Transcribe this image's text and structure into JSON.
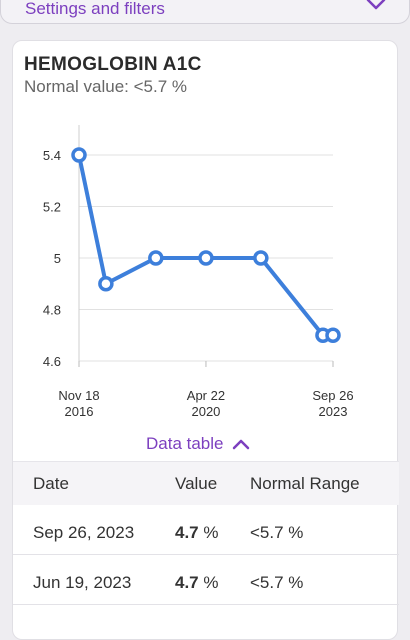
{
  "settings_bar": {
    "label": "Settings and filters",
    "icon": "chevron-down-icon"
  },
  "card": {
    "title": "HEMOGLOBIN A1C",
    "subtitle": "Normal value: <5.7 %"
  },
  "chart_data": {
    "type": "line",
    "x": [
      "2016-11-18",
      "2017-08-10",
      "2018-12-15",
      "2020-04-22",
      "2021-10-15",
      "2023-06-19",
      "2023-09-26"
    ],
    "series": [
      {
        "values": [
          5.4,
          4.9,
          5.0,
          5.0,
          5.0,
          4.7,
          4.7
        ]
      }
    ],
    "y_ticks": [
      "5.4",
      "5.2",
      "5",
      "4.8",
      "4.6"
    ],
    "ylim": [
      4.6,
      5.4
    ],
    "x_tick_labels": [
      {
        "line1": "Nov 18",
        "line2": "2016"
      },
      {
        "line1": "Apr 22",
        "line2": "2020"
      },
      {
        "line1": "Sep 26",
        "line2": "2023"
      }
    ],
    "grid": true,
    "color": "#3d7fdb"
  },
  "data_table": {
    "toggle_label": "Data table",
    "toggle_icon": "chevron-up-icon",
    "headers": {
      "date": "Date",
      "value": "Value",
      "range": "Normal Range"
    },
    "rows": [
      {
        "date": "Sep 26, 2023",
        "value": "4.7",
        "unit": "%",
        "range": "<5.7 %"
      },
      {
        "date": "Jun 19, 2023",
        "value": "4.7",
        "unit": "%",
        "range": "<5.7 %"
      }
    ]
  },
  "colors": {
    "accent": "#7c3fbf",
    "line": "#3d7fdb"
  }
}
